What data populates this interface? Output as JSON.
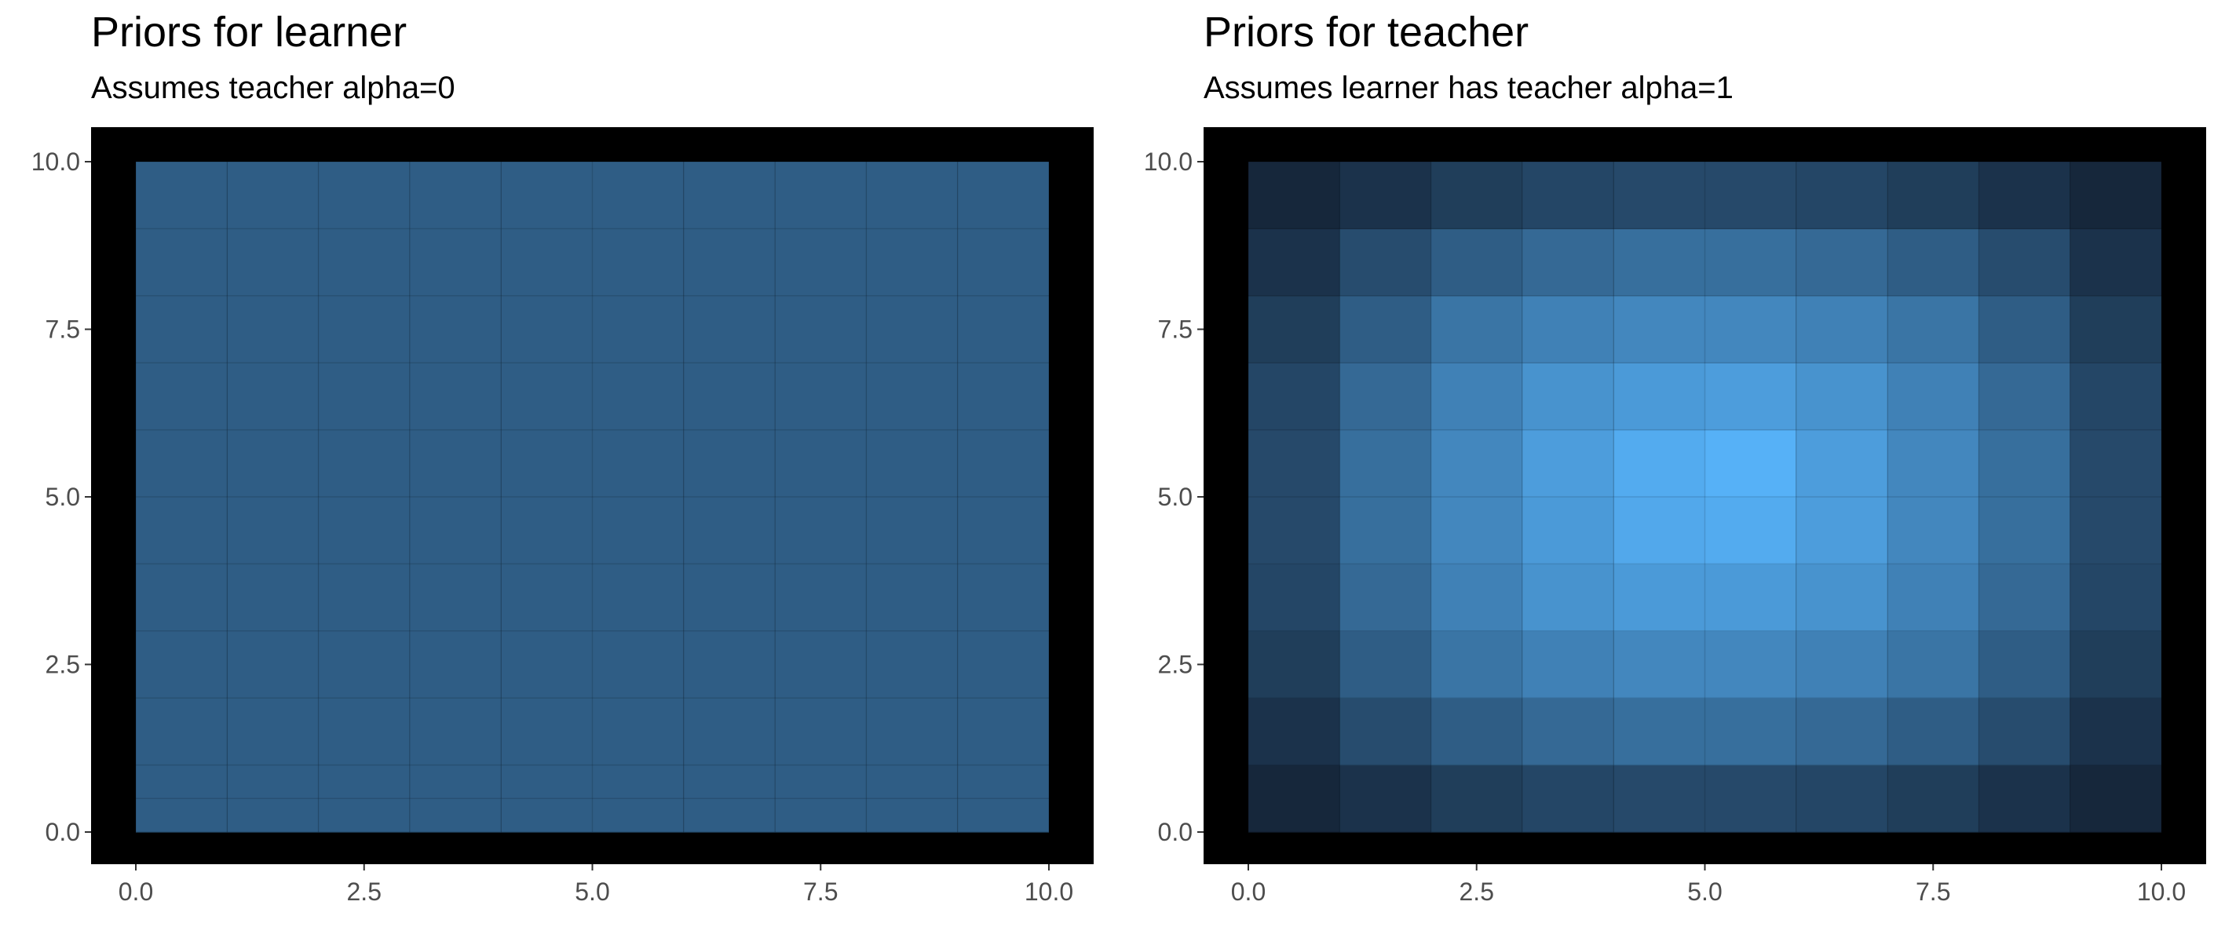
{
  "chart_data": [
    {
      "type": "heatmap",
      "title": "Priors for learner",
      "subtitle": "Assumes teacher alpha=0",
      "xlabel": "",
      "ylabel": "",
      "xlim": [
        0,
        10
      ],
      "ylim": [
        0,
        10
      ],
      "x_ticks": [
        "0.0",
        "2.5",
        "5.0",
        "7.5",
        "10.0"
      ],
      "y_ticks": [
        "0.0",
        "2.5",
        "5.0",
        "7.5",
        "10.0"
      ],
      "x_edges": [
        0,
        1,
        2,
        3,
        4,
        5,
        6,
        7,
        8,
        9,
        10
      ],
      "y_edges": [
        0,
        0.5,
        1,
        2,
        3,
        4,
        5,
        6,
        7,
        8,
        9,
        10
      ],
      "grid": true,
      "panel_background": "#000000",
      "color_low": "#132133",
      "color_high": "#56B1F7",
      "fill_range": [
        0,
        1
      ],
      "values": [
        [
          0.42,
          0.42,
          0.42,
          0.42,
          0.42,
          0.42,
          0.42,
          0.42,
          0.42,
          0.42
        ],
        [
          0.42,
          0.42,
          0.42,
          0.42,
          0.42,
          0.42,
          0.42,
          0.42,
          0.42,
          0.42
        ],
        [
          0.42,
          0.42,
          0.42,
          0.42,
          0.42,
          0.42,
          0.42,
          0.42,
          0.42,
          0.42
        ],
        [
          0.42,
          0.42,
          0.42,
          0.42,
          0.42,
          0.42,
          0.42,
          0.42,
          0.42,
          0.42
        ],
        [
          0.42,
          0.42,
          0.42,
          0.42,
          0.42,
          0.42,
          0.42,
          0.42,
          0.42,
          0.42
        ],
        [
          0.42,
          0.42,
          0.42,
          0.42,
          0.42,
          0.42,
          0.42,
          0.42,
          0.42,
          0.42
        ],
        [
          0.42,
          0.42,
          0.42,
          0.42,
          0.42,
          0.42,
          0.42,
          0.42,
          0.42,
          0.42
        ],
        [
          0.42,
          0.42,
          0.42,
          0.42,
          0.42,
          0.42,
          0.42,
          0.42,
          0.42,
          0.42
        ],
        [
          0.42,
          0.42,
          0.42,
          0.42,
          0.42,
          0.42,
          0.42,
          0.42,
          0.42,
          0.42
        ],
        [
          0.42,
          0.42,
          0.42,
          0.42,
          0.42,
          0.42,
          0.42,
          0.42,
          0.42,
          0.42
        ],
        [
          0.42,
          0.42,
          0.42,
          0.42,
          0.42,
          0.42,
          0.42,
          0.42,
          0.42,
          0.42
        ]
      ]
    },
    {
      "type": "heatmap",
      "title": "Priors for teacher",
      "subtitle": "Assumes learner has teacher alpha=1",
      "xlabel": "",
      "ylabel": "",
      "xlim": [
        0,
        10
      ],
      "ylim": [
        0,
        10
      ],
      "x_ticks": [
        "0.0",
        "2.5",
        "5.0",
        "7.5",
        "10.0"
      ],
      "y_ticks": [
        "0.0",
        "2.5",
        "5.0",
        "7.5",
        "10.0"
      ],
      "x_edges": [
        0,
        1,
        2,
        3,
        4,
        5,
        6,
        7,
        8,
        9,
        10
      ],
      "y_edges": [
        0,
        1,
        2,
        3,
        4,
        5,
        6,
        7,
        8,
        9,
        10
      ],
      "grid": true,
      "panel_background": "#000000",
      "color_low": "#132133",
      "color_high": "#56B1F7",
      "fill_range": [
        0,
        1
      ],
      "values": [
        [
          0.04,
          0.12,
          0.2,
          0.26,
          0.28,
          0.28,
          0.26,
          0.2,
          0.12,
          0.04
        ],
        [
          0.12,
          0.3,
          0.42,
          0.5,
          0.54,
          0.54,
          0.5,
          0.42,
          0.3,
          0.12
        ],
        [
          0.2,
          0.42,
          0.58,
          0.67,
          0.71,
          0.71,
          0.67,
          0.58,
          0.42,
          0.2
        ],
        [
          0.26,
          0.5,
          0.67,
          0.79,
          0.84,
          0.84,
          0.79,
          0.67,
          0.5,
          0.26
        ],
        [
          0.28,
          0.54,
          0.71,
          0.84,
          0.94,
          0.96,
          0.86,
          0.71,
          0.54,
          0.28
        ],
        [
          0.28,
          0.54,
          0.71,
          0.86,
          0.96,
          1.0,
          0.86,
          0.71,
          0.54,
          0.28
        ],
        [
          0.26,
          0.5,
          0.67,
          0.79,
          0.84,
          0.86,
          0.79,
          0.67,
          0.5,
          0.26
        ],
        [
          0.2,
          0.42,
          0.58,
          0.67,
          0.71,
          0.71,
          0.67,
          0.58,
          0.42,
          0.2
        ],
        [
          0.12,
          0.3,
          0.42,
          0.5,
          0.54,
          0.54,
          0.5,
          0.42,
          0.3,
          0.12
        ],
        [
          0.04,
          0.12,
          0.2,
          0.26,
          0.28,
          0.28,
          0.26,
          0.2,
          0.12,
          0.04
        ]
      ]
    }
  ]
}
